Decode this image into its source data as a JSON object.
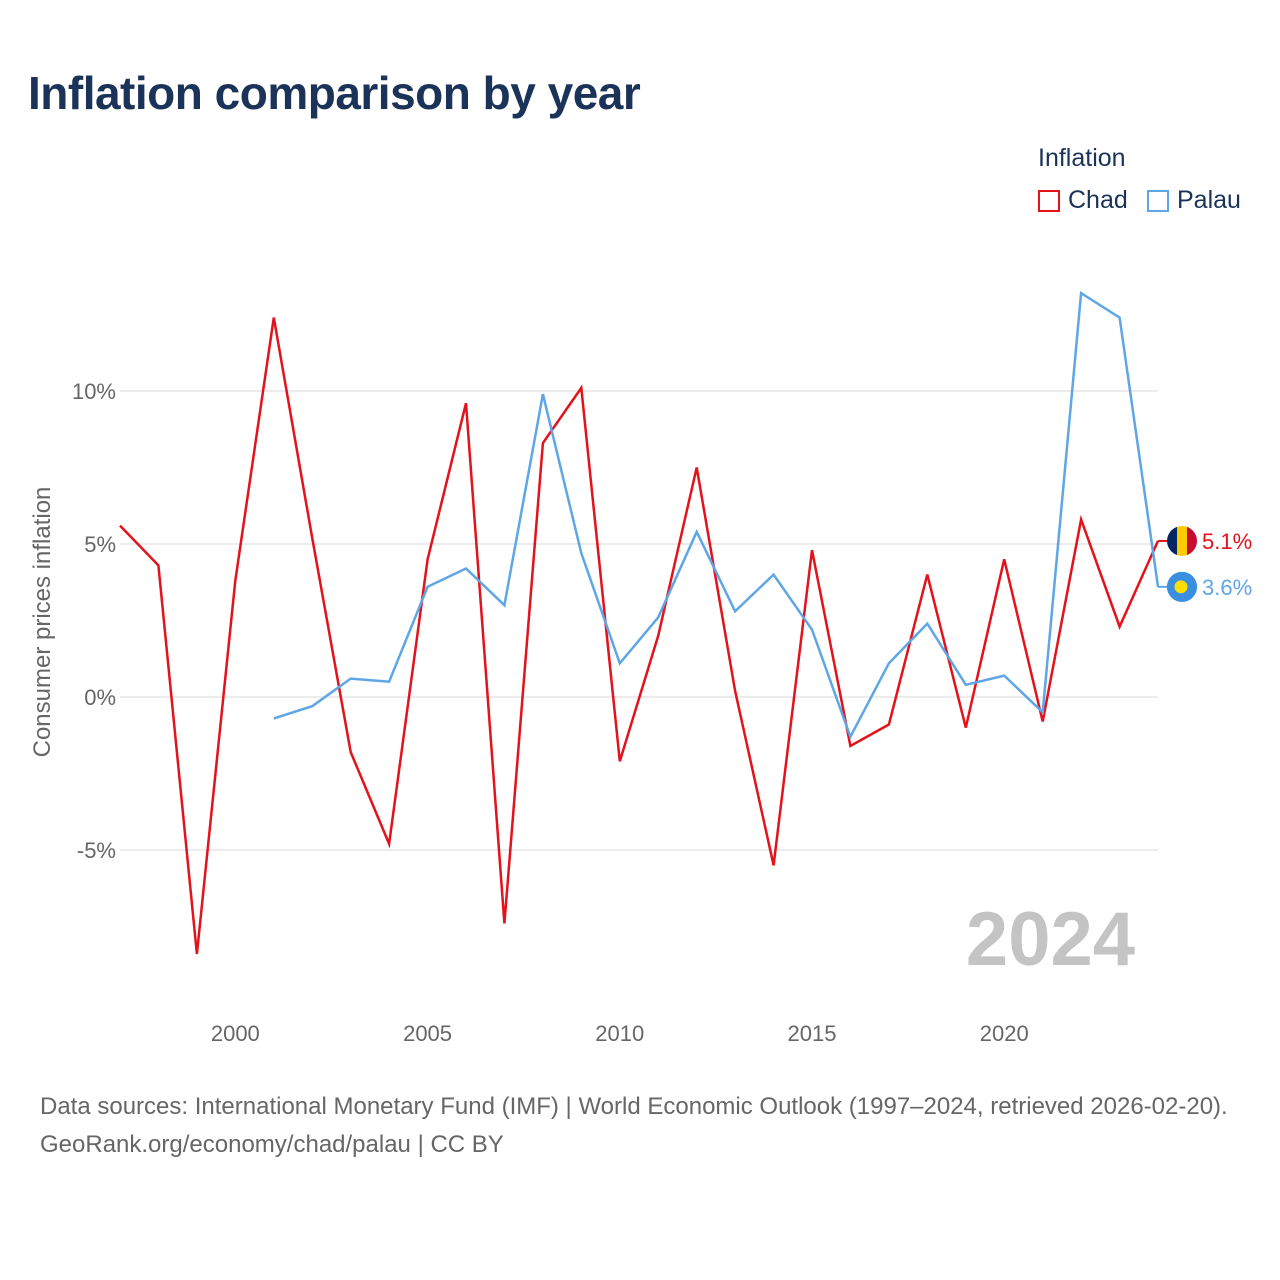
{
  "title": "Inflation comparison by year",
  "legend": {
    "title": "Inflation",
    "items": [
      {
        "label": "Chad",
        "color": "#e3121b"
      },
      {
        "label": "Palau",
        "color": "#5ea6e6"
      }
    ]
  },
  "chart_data": {
    "type": "line",
    "title": "Inflation comparison by year",
    "xlabel": "",
    "ylabel": "Consumer prices inflation",
    "xlim": [
      1997,
      2024
    ],
    "ylim": [
      -10,
      15
    ],
    "grid": true,
    "y_ticks": [
      -5,
      0,
      5,
      10
    ],
    "y_tick_labels": [
      "-5%",
      "0%",
      "5%",
      "10%"
    ],
    "x_ticks": [
      2000,
      2005,
      2010,
      2015,
      2020
    ],
    "x_tick_labels": [
      "2000",
      "2005",
      "2010",
      "2015",
      "2020"
    ],
    "watermark_year": "2024",
    "series": [
      {
        "name": "Chad",
        "color": "#e3121b",
        "end_label": "5.1%",
        "points": [
          [
            1997,
            5.6
          ],
          [
            1998,
            4.3
          ],
          [
            1999,
            -8.4
          ],
          [
            2000,
            3.8
          ],
          [
            2001,
            12.4
          ],
          [
            2002,
            5.2
          ],
          [
            2003,
            -1.8
          ],
          [
            2004,
            -4.8
          ],
          [
            2005,
            4.5
          ],
          [
            2006,
            9.6
          ],
          [
            2007,
            -7.4
          ],
          [
            2008,
            8.3
          ],
          [
            2009,
            10.1
          ],
          [
            2010,
            -2.1
          ],
          [
            2011,
            2.0
          ],
          [
            2012,
            7.5
          ],
          [
            2013,
            0.2
          ],
          [
            2014,
            -5.5
          ],
          [
            2015,
            4.8
          ],
          [
            2016,
            -1.6
          ],
          [
            2017,
            -0.9
          ],
          [
            2018,
            4.0
          ],
          [
            2019,
            -1.0
          ],
          [
            2020,
            4.5
          ],
          [
            2021,
            -0.8
          ],
          [
            2022,
            5.8
          ],
          [
            2023,
            2.3
          ],
          [
            2024,
            5.1
          ]
        ]
      },
      {
        "name": "Palau",
        "color": "#5ea6e6",
        "end_label": "3.6%",
        "points": [
          [
            2001,
            -0.7
          ],
          [
            2002,
            -0.3
          ],
          [
            2003,
            0.6
          ],
          [
            2004,
            0.5
          ],
          [
            2005,
            3.6
          ],
          [
            2006,
            4.2
          ],
          [
            2007,
            3.0
          ],
          [
            2008,
            9.9
          ],
          [
            2009,
            4.7
          ],
          [
            2010,
            1.1
          ],
          [
            2011,
            2.6
          ],
          [
            2012,
            5.4
          ],
          [
            2013,
            2.8
          ],
          [
            2014,
            4.0
          ],
          [
            2015,
            2.2
          ],
          [
            2016,
            -1.3
          ],
          [
            2017,
            1.1
          ],
          [
            2018,
            2.4
          ],
          [
            2019,
            0.4
          ],
          [
            2020,
            0.7
          ],
          [
            2021,
            -0.5
          ],
          [
            2022,
            13.2
          ],
          [
            2023,
            12.4
          ],
          [
            2024,
            3.6
          ]
        ]
      }
    ]
  },
  "footer": {
    "sources": "Data sources: International Monetary Fund (IMF) | World Economic Outlook (1997–2024, retrieved 2026-02-20).",
    "credit": "GeoRank.org/economy/chad/palau | CC BY"
  }
}
